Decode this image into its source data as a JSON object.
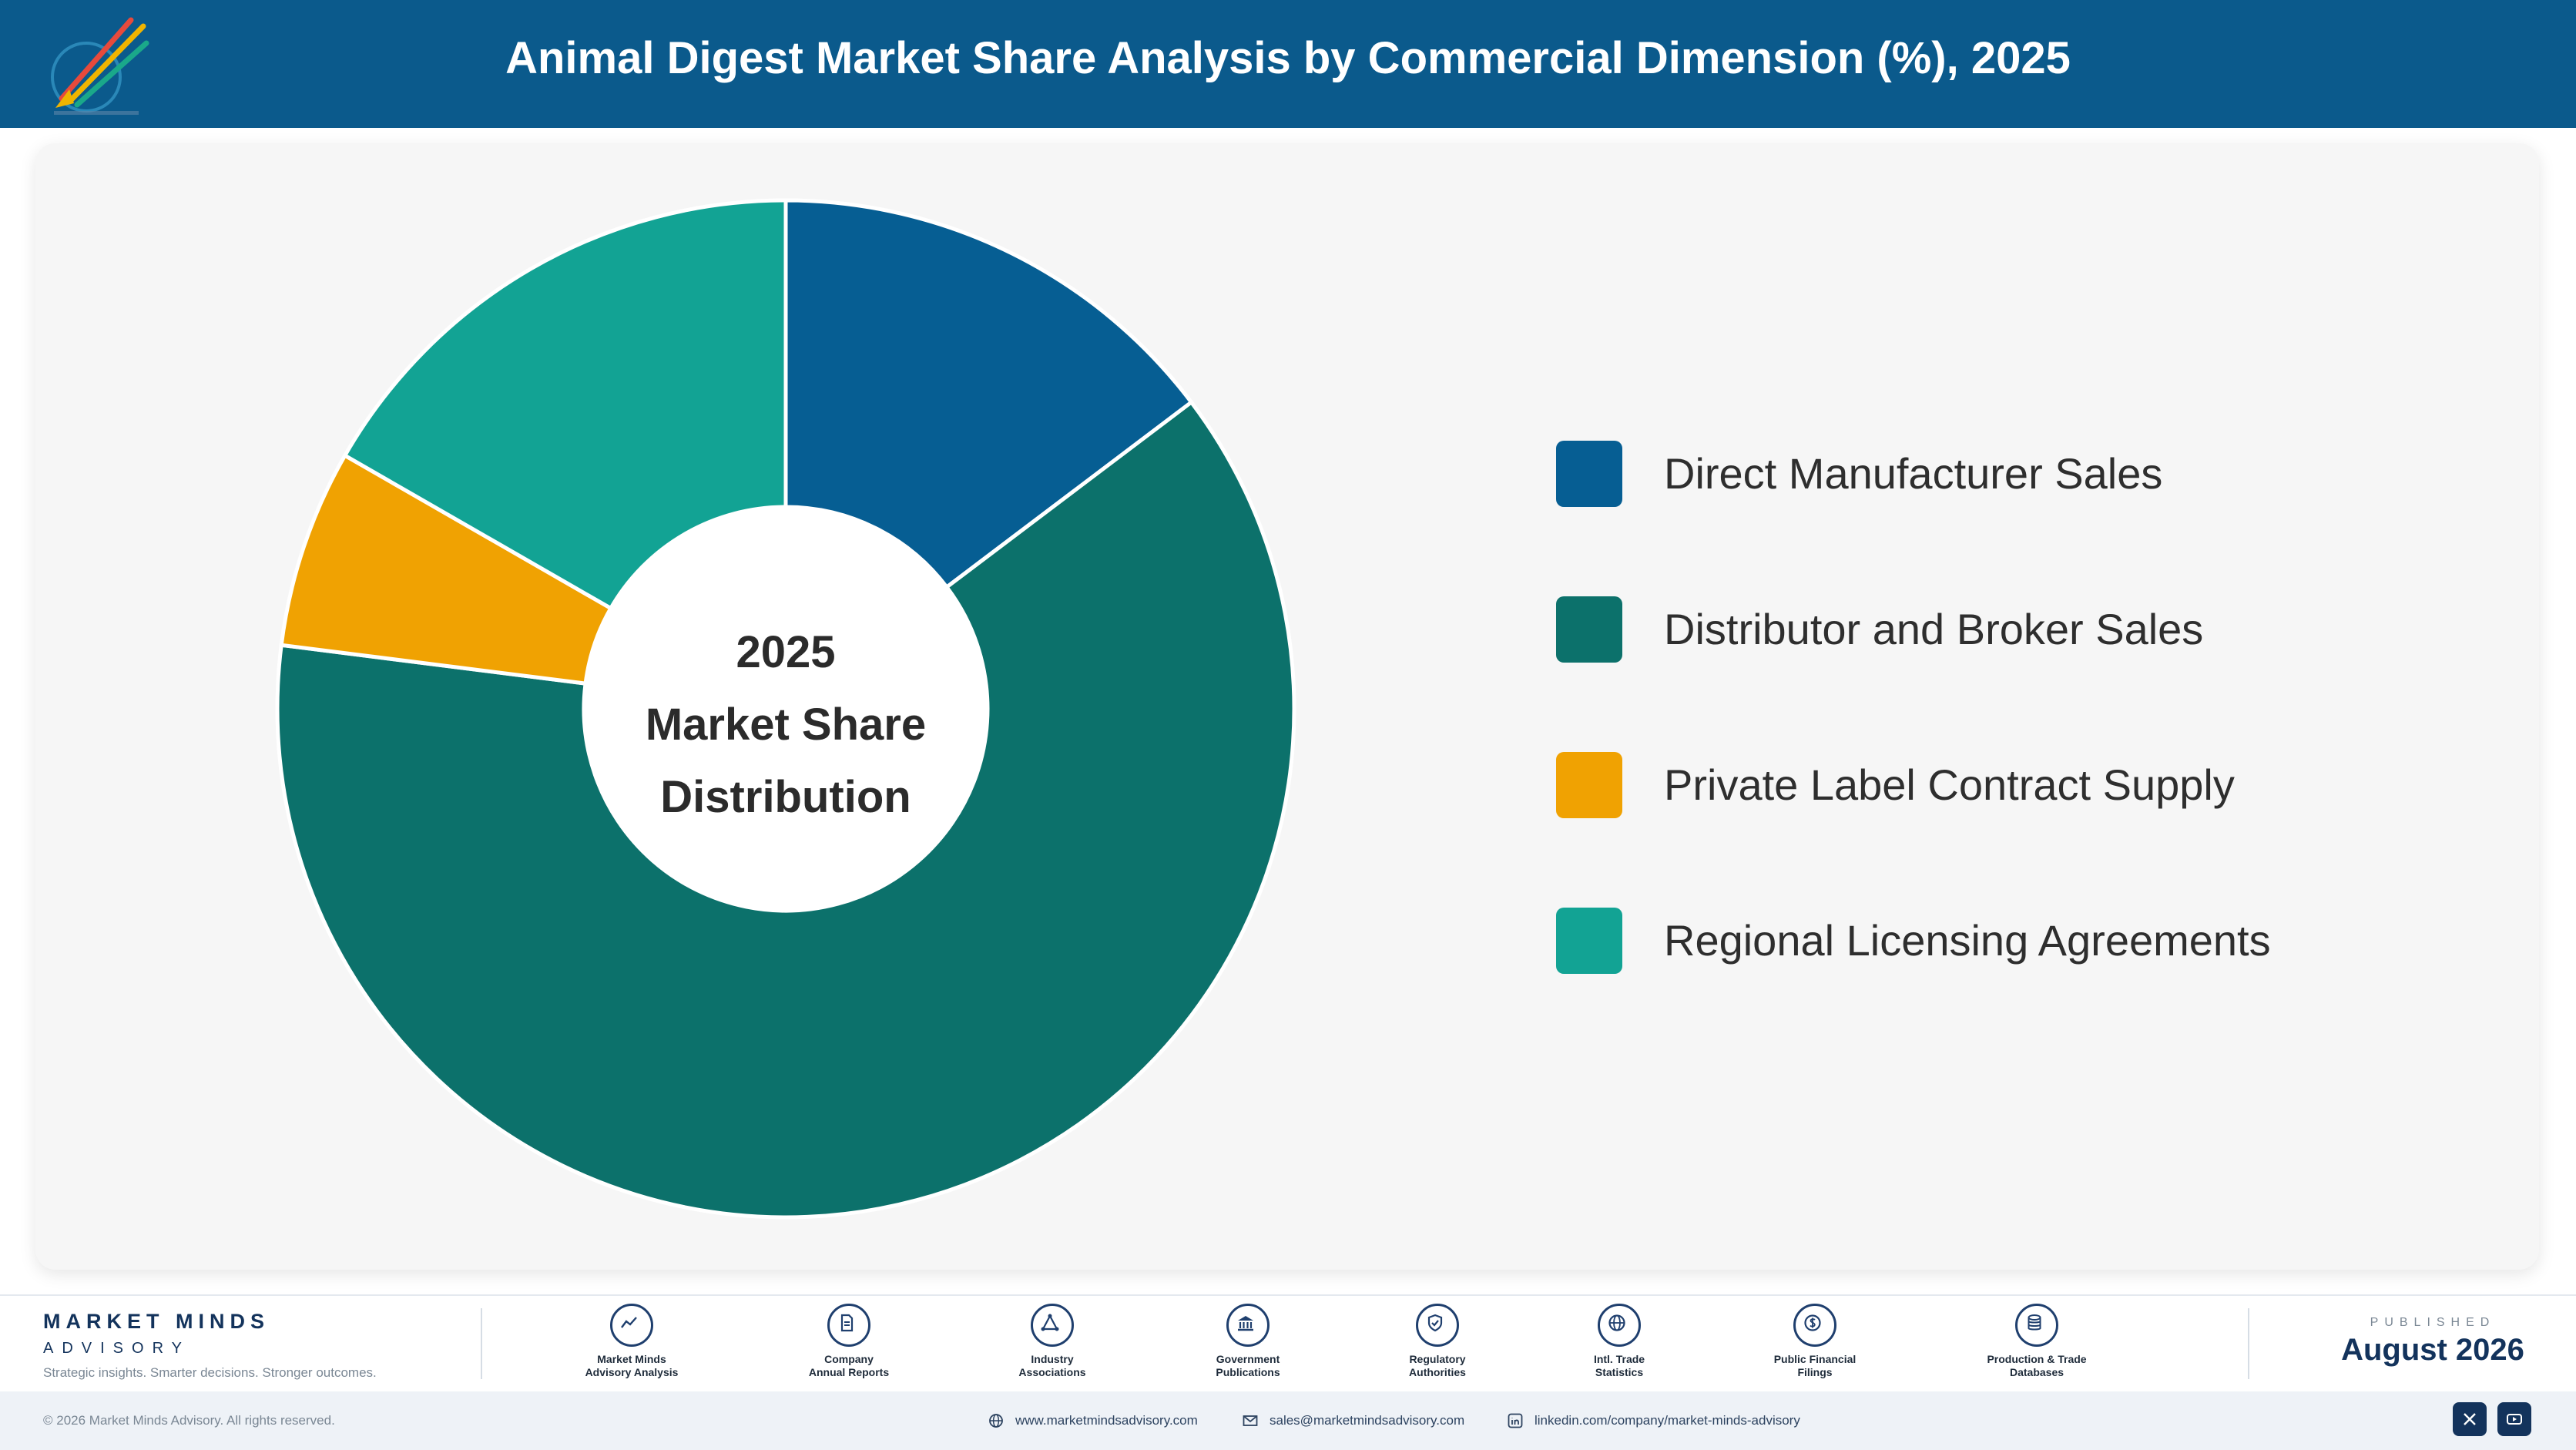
{
  "header": {
    "title": "Animal Digest Market Share Analysis by Commercial Dimension (%), 2025"
  },
  "colors": {
    "header_bg": "#0b5a8c",
    "direct": "#065e93",
    "distributor": "#0c716b",
    "private": "#f0a202",
    "regional": "#12a394"
  },
  "chart_data": {
    "type": "pie",
    "style": "donut",
    "center_label": [
      "2025",
      "Market Share",
      "Distribution"
    ],
    "categories": [
      "Direct Manufacturer Sales",
      "Distributor and Broker Sales",
      "Private Label Contract Supply",
      "Regional Licensing Agreements"
    ],
    "values": [
      14.7,
      62.3,
      6.3,
      16.7
    ],
    "colors": [
      "#065e93",
      "#0c716b",
      "#f0a202",
      "#12a394"
    ],
    "start_angle_deg": 0,
    "direction": "clockwise",
    "legend_position": "right"
  },
  "footer": {
    "brand_name": "MARKET MINDS",
    "brand_sub": "ADVISORY",
    "brand_tagline": "Strategic insights. Smarter decisions. Stronger outcomes.",
    "sources": [
      {
        "line1": "Market Minds",
        "line2": "Advisory Analysis",
        "icon": "trend-icon"
      },
      {
        "line1": "Company",
        "line2": "Annual Reports",
        "icon": "document-icon"
      },
      {
        "line1": "Industry",
        "line2": "Associations",
        "icon": "network-icon"
      },
      {
        "line1": "Government",
        "line2": "Publications",
        "icon": "government-building-icon"
      },
      {
        "line1": "Regulatory",
        "line2": "Authorities",
        "icon": "shield-check-icon"
      },
      {
        "line1": "Intl. Trade",
        "line2": "Statistics",
        "icon": "globe-icon"
      },
      {
        "line1": "Public Financial",
        "line2": "Filings",
        "icon": "dollar-coin-icon"
      },
      {
        "line1": "Production & Trade",
        "line2": "Databases",
        "icon": "database-icon"
      }
    ],
    "published_label": "PUBLISHED",
    "published_date": "August 2026",
    "copyright": "© 2026 Market Minds Advisory. All rights reserved.",
    "website": "www.marketmindsadvisory.com",
    "email": "sales@marketmindsadvisory.com",
    "linkedin": "linkedin.com/company/market-minds-advisory"
  }
}
